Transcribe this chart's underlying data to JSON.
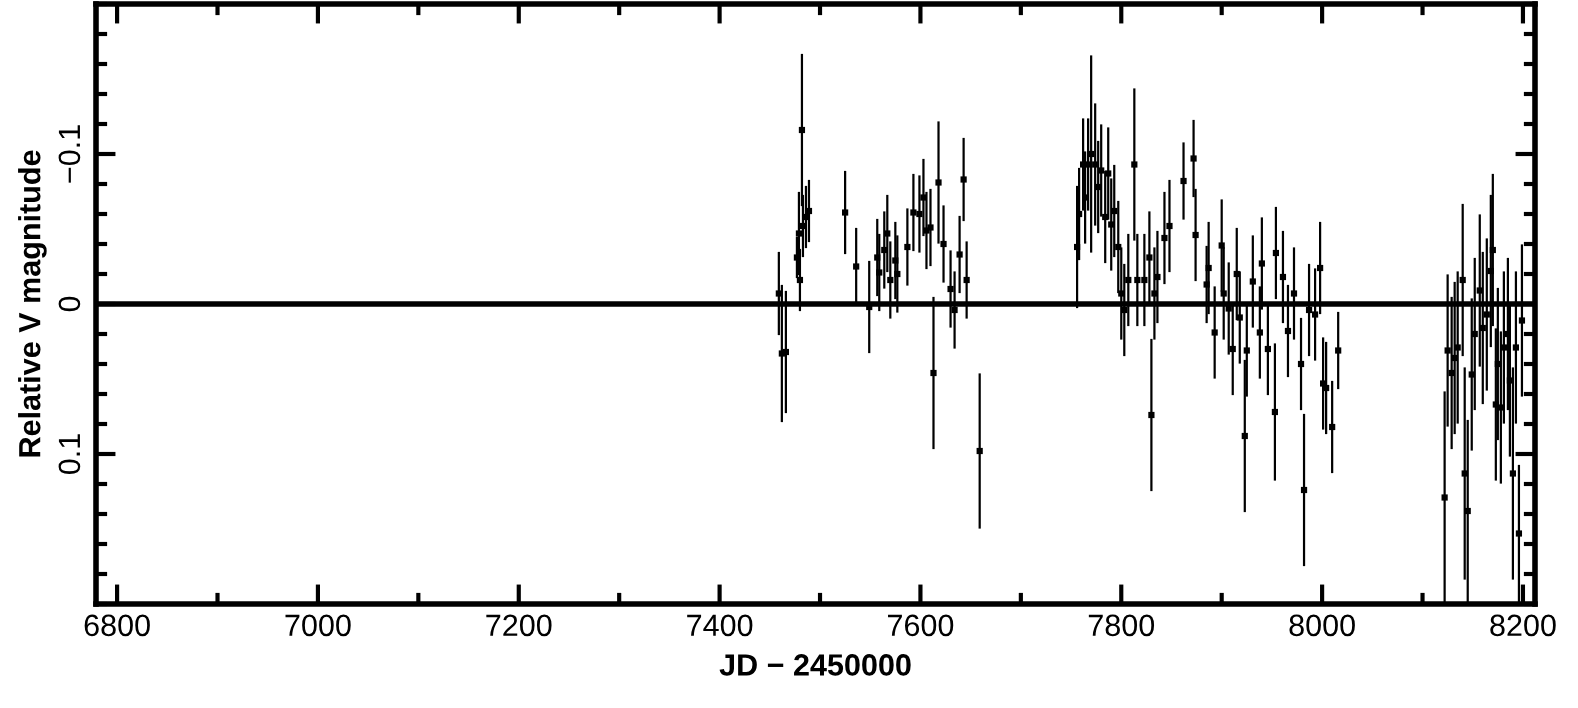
{
  "chart_data": {
    "type": "scatter",
    "xlabel": "JD − 2450000",
    "ylabel": "Relative V magnitude",
    "xlim": [
      6779,
      8212
    ],
    "xticks": [
      6800,
      7000,
      7200,
      7400,
      7600,
      7800,
      8000,
      8200
    ],
    "ylim": [
      0.2,
      -0.2
    ],
    "yticks": [
      {
        "value": -0.1,
        "label": "−0.1"
      },
      0,
      0.1
    ],
    "ref_lines": [
      {
        "axis": "y",
        "value": 0,
        "color": "#000000"
      }
    ],
    "marker": "square",
    "grid": false,
    "legend": false,
    "series": [
      {
        "color": "#000000",
        "x": [
          7459,
          7462,
          7466,
          7477,
          7479,
          7480,
          7482,
          7483,
          7486,
          7489,
          7525,
          7536,
          7549,
          7557,
          7559,
          7564,
          7567,
          7570,
          7575,
          7577,
          7587,
          7593,
          7599,
          7603,
          7606,
          7610,
          7613,
          7618,
          7623,
          7630,
          7634,
          7639,
          7643,
          7646,
          7659,
          7756,
          7758,
          7762,
          7764,
          7767,
          7770,
          7774,
          7777,
          7780,
          7784,
          7787,
          7790,
          7793,
          7797,
          7800,
          7803,
          7807,
          7813,
          7816,
          7823,
          7828,
          7830,
          7833,
          7836,
          7843,
          7848,
          7862,
          7872,
          7874,
          7885,
          7887,
          7893,
          7900,
          7902,
          7907,
          7911,
          7915,
          7918,
          7923,
          7925,
          7931,
          7938,
          7940,
          7946,
          7953,
          7954,
          7961,
          7966,
          7972,
          7979,
          7982,
          7987,
          7993,
          7998,
          8001,
          8004,
          8010,
          8016,
          8122,
          8125,
          8129,
          8132,
          8135,
          8140,
          8142,
          8145,
          8149,
          8152,
          8157,
          8160,
          8164,
          8168,
          8170,
          8173,
          8175,
          8178,
          8181,
          8185,
          8187,
          8190,
          8193,
          8196,
          8199
        ],
        "values": [
          -0.007,
          0.033,
          0.032,
          -0.031,
          -0.047,
          -0.016,
          -0.116,
          -0.052,
          -0.058,
          -0.062,
          -0.061,
          -0.025,
          0.002,
          -0.031,
          -0.021,
          -0.036,
          -0.047,
          -0.016,
          -0.029,
          -0.02,
          -0.038,
          -0.061,
          -0.06,
          -0.071,
          -0.049,
          -0.051,
          0.046,
          -0.081,
          -0.04,
          -0.01,
          0.004,
          -0.033,
          -0.083,
          -0.016,
          0.098,
          -0.038,
          -0.06,
          -0.093,
          -0.071,
          -0.093,
          -0.1,
          -0.093,
          -0.078,
          -0.089,
          -0.058,
          -0.087,
          -0.053,
          -0.062,
          -0.038,
          -0.007,
          0.004,
          -0.016,
          -0.093,
          -0.016,
          -0.016,
          -0.031,
          0.074,
          -0.007,
          -0.018,
          -0.044,
          -0.052,
          -0.082,
          -0.097,
          -0.046,
          -0.013,
          -0.024,
          0.019,
          -0.039,
          -0.007,
          0.003,
          0.03,
          -0.02,
          0.009,
          0.088,
          0.031,
          -0.015,
          0.019,
          -0.027,
          0.03,
          0.072,
          -0.034,
          -0.018,
          0.018,
          -0.007,
          0.04,
          0.124,
          0.004,
          0.007,
          -0.024,
          0.053,
          0.056,
          0.082,
          0.031,
          0.129,
          0.031,
          0.046,
          0.036,
          0.029,
          -0.016,
          0.113,
          0.138,
          0.047,
          0.02,
          -0.009,
          0.016,
          0.007,
          -0.022,
          -0.036,
          0.067,
          0.04,
          0.069,
          0.029,
          0.02,
          0.051,
          0.113,
          0.029,
          0.153,
          0.011
        ],
        "errors": [
          0.027,
          0.045,
          0.04,
          0.013,
          0.027,
          0.02,
          0.05,
          0.02,
          0.02,
          0.02,
          0.027,
          0.025,
          0.03,
          0.025,
          0.025,
          0.025,
          0.025,
          0.025,
          0.025,
          0.025,
          0.025,
          0.025,
          0.025,
          0.025,
          0.025,
          0.025,
          0.05,
          0.04,
          0.025,
          0.025,
          0.025,
          0.025,
          0.027,
          0.025,
          0.051,
          0.04,
          0.03,
          0.03,
          0.03,
          0.03,
          0.065,
          0.04,
          0.03,
          0.03,
          0.03,
          0.03,
          0.03,
          0.03,
          0.03,
          0.03,
          0.03,
          0.03,
          0.05,
          0.03,
          0.03,
          0.03,
          0.05,
          0.03,
          0.03,
          0.03,
          0.03,
          0.025,
          0.025,
          0.03,
          0.025,
          0.03,
          0.03,
          0.03,
          0.03,
          0.03,
          0.03,
          0.03,
          0.03,
          0.05,
          0.03,
          0.03,
          0.03,
          0.03,
          0.03,
          0.045,
          0.03,
          0.03,
          0.03,
          0.03,
          0.03,
          0.05,
          0.03,
          0.03,
          0.03,
          0.03,
          0.03,
          0.03,
          0.025,
          0.07,
          0.05,
          0.05,
          0.05,
          0.05,
          0.05,
          0.07,
          0.06,
          0.05,
          0.05,
          0.05,
          0.05,
          0.05,
          0.05,
          0.05,
          0.05,
          0.05,
          0.05,
          0.05,
          0.05,
          0.05,
          0.07,
          0.05,
          0.045,
          0.05
        ]
      }
    ]
  }
}
